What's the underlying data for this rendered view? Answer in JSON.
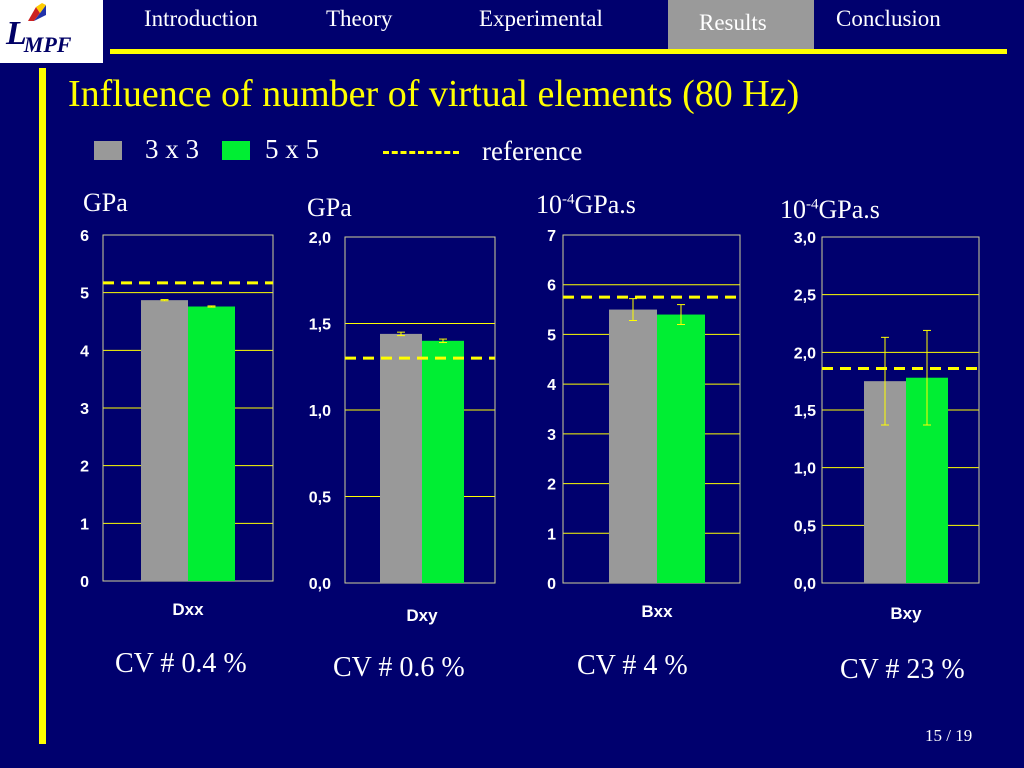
{
  "logo": {
    "main": "L",
    "sub": "MPF"
  },
  "nav": {
    "items": [
      {
        "label": "Introduction",
        "active": false
      },
      {
        "label": "Theory",
        "active": false
      },
      {
        "label": "Experimental",
        "active": false
      },
      {
        "label": "Results",
        "active": true
      },
      {
        "label": "Conclusion",
        "active": false
      }
    ]
  },
  "slide": {
    "title": "Influence of number of virtual elements (80 Hz)",
    "page": "15 / 19"
  },
  "legend": {
    "series_a": "3 x 3",
    "series_b": "5 x 5",
    "reference": "reference"
  },
  "colors": {
    "background": "#00006e",
    "accent": "#ffff00",
    "series_3x3": "#999999",
    "series_5x5": "#00ee33",
    "nav_active": "#9a9a9a"
  },
  "units": {
    "u1": "GPa",
    "u2": "GPa",
    "u3_base": "10",
    "u3_exp": "-4",
    "u3_rest": "GPa.s",
    "u4_base": "10",
    "u4_exp": "-4",
    "u4_rest": "GPa.s"
  },
  "cv": {
    "c1": "CV # 0.4 %",
    "c2": "CV # 0.6 %",
    "c3": "CV # 4 %",
    "c4": "CV # 23 %"
  },
  "chart_data": [
    {
      "type": "bar",
      "category": "Dxx",
      "unit": "GPa",
      "ylim": [
        0,
        6
      ],
      "ticks": [
        "0",
        "1",
        "2",
        "3",
        "4",
        "5",
        "6"
      ],
      "tick_values": [
        0,
        1,
        2,
        3,
        4,
        5,
        6
      ],
      "series": [
        {
          "name": "3 x 3",
          "value": 4.87,
          "error": 0.01
        },
        {
          "name": "5 x 5",
          "value": 4.76,
          "error": 0.01
        }
      ],
      "reference": 5.17,
      "grid": true
    },
    {
      "type": "bar",
      "category": "Dxy",
      "unit": "GPa",
      "ylim": [
        0,
        2.0
      ],
      "ticks": [
        "0,0",
        "0,5",
        "1,0",
        "1,5",
        "2,0"
      ],
      "tick_values": [
        0,
        0.5,
        1.0,
        1.5,
        2.0
      ],
      "series": [
        {
          "name": "3 x 3",
          "value": 1.44,
          "error": 0.01
        },
        {
          "name": "5 x 5",
          "value": 1.4,
          "error": 0.01
        }
      ],
      "reference": 1.3,
      "grid": true
    },
    {
      "type": "bar",
      "category": "Bxx",
      "unit": "10^-4 GPa.s",
      "ylim": [
        0,
        7
      ],
      "ticks": [
        "0",
        "1",
        "2",
        "3",
        "4",
        "5",
        "6",
        "7"
      ],
      "tick_values": [
        0,
        1,
        2,
        3,
        4,
        5,
        6,
        7
      ],
      "series": [
        {
          "name": "3 x 3",
          "value": 5.5,
          "error": 0.22
        },
        {
          "name": "5 x 5",
          "value": 5.4,
          "error": 0.2
        }
      ],
      "reference": 5.75,
      "grid": true
    },
    {
      "type": "bar",
      "category": "Bxy",
      "unit": "10^-4 GPa.s",
      "ylim": [
        0,
        3.0
      ],
      "ticks": [
        "0,0",
        "0,5",
        "1,0",
        "1,5",
        "2,0",
        "2,5",
        "3,0"
      ],
      "tick_values": [
        0,
        0.5,
        1.0,
        1.5,
        2.0,
        2.5,
        3.0
      ],
      "series": [
        {
          "name": "3 x 3",
          "value": 1.75,
          "error": 0.38
        },
        {
          "name": "5 x 5",
          "value": 1.78,
          "error": 0.41
        }
      ],
      "reference": 1.86,
      "grid": true
    }
  ]
}
